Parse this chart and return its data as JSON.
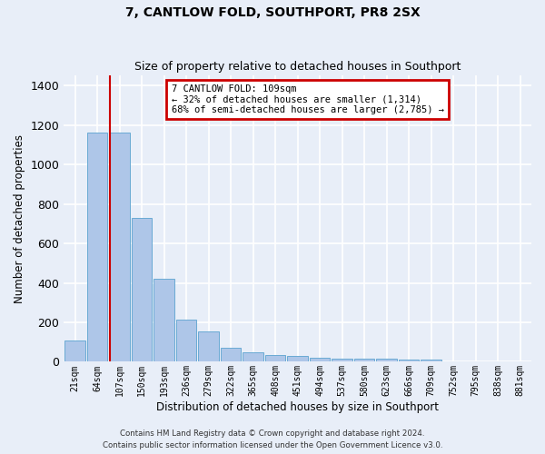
{
  "title": "7, CANTLOW FOLD, SOUTHPORT, PR8 2SX",
  "subtitle": "Size of property relative to detached houses in Southport",
  "xlabel": "Distribution of detached houses by size in Southport",
  "ylabel": "Number of detached properties",
  "footer_line1": "Contains HM Land Registry data © Crown copyright and database right 2024.",
  "footer_line2": "Contains public sector information licensed under the Open Government Licence v3.0.",
  "categories": [
    "21sqm",
    "64sqm",
    "107sqm",
    "150sqm",
    "193sqm",
    "236sqm",
    "279sqm",
    "322sqm",
    "365sqm",
    "408sqm",
    "451sqm",
    "494sqm",
    "537sqm",
    "580sqm",
    "623sqm",
    "666sqm",
    "709sqm",
    "752sqm",
    "795sqm",
    "838sqm",
    "881sqm"
  ],
  "values": [
    107,
    1163,
    1163,
    730,
    420,
    215,
    152,
    70,
    48,
    35,
    28,
    20,
    15,
    15,
    15,
    13,
    10,
    0,
    0,
    0,
    0
  ],
  "bar_color": "#aec6e8",
  "bar_edge_color": "#6aaad4",
  "bg_color": "#e8eef8",
  "grid_color": "#ffffff",
  "annotation_line1": "7 CANTLOW FOLD: 109sqm",
  "annotation_line2": "← 32% of detached houses are smaller (1,314)",
  "annotation_line3": "68% of semi-detached houses are larger (2,785) →",
  "annotation_box_color": "#cc0000",
  "property_line_color": "#cc0000",
  "property_line_x": 1.57,
  "ylim": [
    0,
    1450
  ],
  "yticks": [
    0,
    200,
    400,
    600,
    800,
    1000,
    1200,
    1400
  ]
}
